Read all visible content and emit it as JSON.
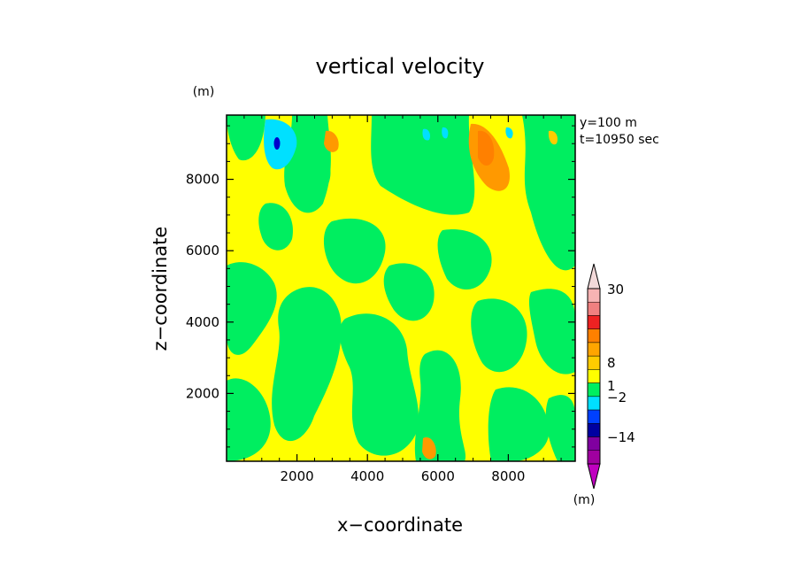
{
  "chart_data": {
    "type": "heatmap",
    "title": "vertical velocity",
    "xlabel": "x−coordinate",
    "ylabel": "z−coordinate",
    "x_unit": "(m)",
    "y_unit": "(m)",
    "annotation_lines": [
      "y=100 m",
      "t=10950 sec"
    ],
    "xlim": [
      0,
      9900
    ],
    "ylim": [
      100,
      9800
    ],
    "x_ticks": [
      2000,
      4000,
      6000,
      8000
    ],
    "y_ticks": [
      2000,
      4000,
      6000,
      8000
    ],
    "colorbar": {
      "levels": [
        {
          "range": "> 30",
          "color": "#f2d9d9"
        },
        {
          "range": "20 to 30",
          "color": "#f7b3b3"
        },
        {
          "range": "12 to 20",
          "color": "#f08080"
        },
        {
          "range": "8 to 12",
          "color": "#ee2222"
        },
        {
          "range": "4 to 8",
          "color": "#ff8000"
        },
        {
          "range": "2 to 4",
          "color": "#ffa500"
        },
        {
          "range": "1 to 2",
          "color": "#ffcc00"
        },
        {
          "range": "0 to 1",
          "color": "#ffff00"
        },
        {
          "range": "-1 to 0",
          "color": "#00ee60"
        },
        {
          "range": "-2 to -1",
          "color": "#00e0ff"
        },
        {
          "range": "-5 to -2",
          "color": "#0040ff"
        },
        {
          "range": "-8 to -5",
          "color": "#0000a0"
        },
        {
          "range": "-14 to -8",
          "color": "#8000a0"
        },
        {
          "range": "-20 to -14",
          "color": "#a000a0"
        },
        {
          "range": "< -20",
          "color": "#c000c0"
        }
      ],
      "labels": [
        "30",
        "8",
        "1",
        "−2",
        "−14"
      ],
      "unit": "(m)"
    },
    "field_colors": {
      "up_weak": "#ffff00",
      "down_weak": "#00ee60",
      "up_mod": "#ffcc00",
      "up_strong": "#ff9900",
      "down_mod": "#00e0ff",
      "down_strong": "#0000cc"
    }
  }
}
